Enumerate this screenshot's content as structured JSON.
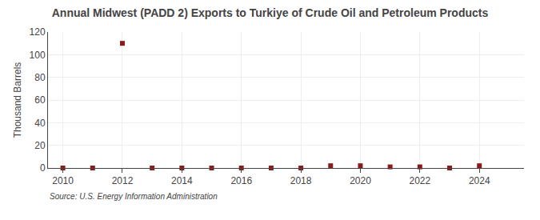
{
  "chart_data": {
    "type": "scatter",
    "title": "Annual Midwest (PADD 2) Exports to Turkiye of Crude Oil and Petroleum Products",
    "ylabel": "Thousand Barrels",
    "annotations": [
      "Source: U.S. Energy Information Administration"
    ],
    "x": [
      2010,
      2011,
      2012,
      2013,
      2014,
      2015,
      2016,
      2017,
      2018,
      2019,
      2020,
      2021,
      2022,
      2023,
      2024
    ],
    "values": [
      0,
      0,
      110,
      0,
      0,
      0,
      0,
      0,
      0,
      2,
      2,
      1,
      1,
      0,
      2
    ],
    "color": "#8b1a1a",
    "marker": "square",
    "xlim": [
      2009.5,
      2025.5
    ],
    "ylim": [
      0,
      120
    ],
    "xticks": [
      2010,
      2012,
      2014,
      2016,
      2018,
      2020,
      2022,
      2024
    ],
    "yticks": [
      0,
      20,
      40,
      60,
      80,
      100,
      120
    ],
    "grid": true
  }
}
